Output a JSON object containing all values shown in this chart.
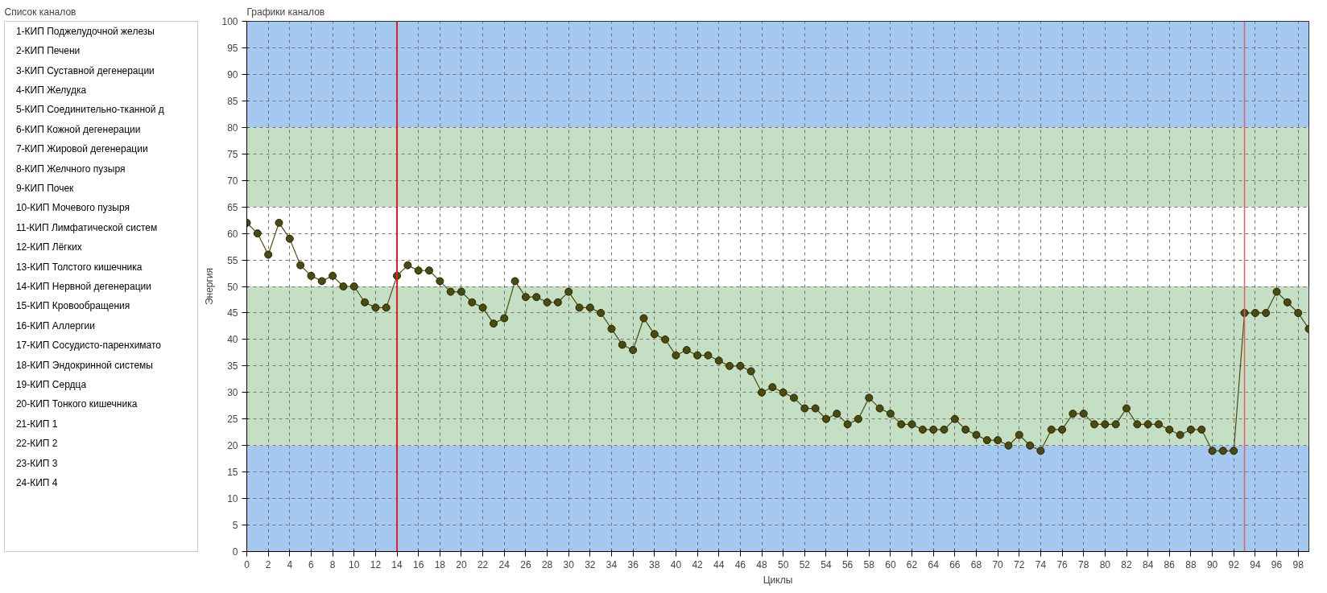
{
  "chart_data": [
    {
      "type": "other",
      "title": "Список каналов",
      "annotations": [
        "1-КИП Поджелудочной железы",
        "2-КИП Печени",
        "3-КИП Суставной дегенерации",
        "4-КИП Желудка",
        "5-КИП Соединительно-тканной д",
        "6-КИП Кожной дегенерации",
        "7-КИП Жировой дегенерации",
        "8-КИП Желчного пузыря",
        "9-КИП Почек",
        "10-КИП Мочевого пузыря",
        "11-КИП Лимфатической систем",
        "12-КИП Лёгких",
        "13-КИП Толстого кишечника",
        "14-КИП Нервной дегенерации",
        "15-КИП Кровообращения",
        "16-КИП Аллергии",
        "17-КИП Сосудисто-паренхимато",
        "18-КИП Эндокринной системы",
        "19-КИП Сердца",
        "20-КИП Тонкого кишечника",
        "21-КИП 1",
        "22-КИП 2",
        "23-КИП 3",
        "24-КИП 4"
      ]
    },
    {
      "type": "line",
      "title": "Графики каналов",
      "xlabel": "Циклы",
      "ylabel": "Энергия",
      "x": [
        0,
        1,
        2,
        3,
        4,
        5,
        6,
        7,
        8,
        9,
        10,
        11,
        12,
        13,
        14,
        15,
        16,
        17,
        18,
        19,
        20,
        21,
        22,
        23,
        24,
        25,
        26,
        27,
        28,
        29,
        30,
        31,
        32,
        33,
        34,
        35,
        36,
        37,
        38,
        39,
        40,
        41,
        42,
        43,
        44,
        45,
        46,
        47,
        48,
        49,
        50,
        51,
        52,
        53,
        54,
        55,
        56,
        57,
        58,
        59,
        60,
        61,
        62,
        63,
        64,
        65,
        66,
        67,
        68,
        69,
        70,
        71,
        72,
        73,
        74,
        75,
        76,
        77,
        78,
        79,
        80,
        81,
        82,
        83,
        84,
        85,
        86,
        87,
        88,
        89,
        90,
        91,
        92,
        93,
        94,
        95,
        96,
        97,
        98,
        99
      ],
      "series": [
        {
          "color": "#4b4b10",
          "values": [
            62,
            60,
            56,
            62,
            59,
            54,
            52,
            51,
            52,
            50,
            50,
            47,
            46,
            46,
            52,
            54,
            53,
            53,
            51,
            49,
            49,
            47,
            46,
            43,
            44,
            51,
            48,
            48,
            47,
            47,
            49,
            46,
            46,
            45,
            42,
            39,
            38,
            44,
            41,
            40,
            37,
            38,
            37,
            37,
            36,
            35,
            35,
            34,
            30,
            31,
            30,
            29,
            27,
            27,
            25,
            26,
            24,
            25,
            29,
            27,
            26,
            24,
            24,
            23,
            23,
            23,
            25,
            23,
            22,
            21,
            21,
            20,
            22,
            20,
            19,
            23,
            23,
            26,
            26,
            24,
            24,
            24,
            27,
            24,
            24,
            24,
            23,
            22,
            23,
            23,
            19,
            19,
            19,
            45,
            45,
            45,
            49,
            47,
            45,
            42
          ]
        }
      ],
      "xlim": [
        0,
        99
      ],
      "xticks": [
        0,
        2,
        4,
        6,
        8,
        10,
        12,
        14,
        16,
        18,
        20,
        22,
        24,
        26,
        28,
        30,
        32,
        34,
        36,
        38,
        40,
        42,
        44,
        46,
        48,
        50,
        52,
        54,
        56,
        58,
        60,
        62,
        64,
        66,
        68,
        70,
        72,
        74,
        76,
        78,
        80,
        82,
        84,
        86,
        88,
        90,
        92,
        94,
        96,
        98
      ],
      "ylim": [
        0,
        100
      ],
      "yticks": [
        0,
        5,
        10,
        15,
        20,
        25,
        30,
        35,
        40,
        45,
        50,
        55,
        60,
        65,
        70,
        75,
        80,
        85,
        90,
        95,
        100
      ],
      "grid": true,
      "marker": "circle",
      "line_style": "solid",
      "bands": [
        {
          "axis": "y",
          "from": 0,
          "to": 20,
          "color": "#a4c8f0"
        },
        {
          "axis": "y",
          "from": 20,
          "to": 50,
          "color": "#c4dfc4"
        },
        {
          "axis": "y",
          "from": 65,
          "to": 80,
          "color": "#c4dfc4"
        },
        {
          "axis": "y",
          "from": 80,
          "to": 100,
          "color": "#a4c8f0"
        }
      ],
      "ref_lines": [
        {
          "axis": "x",
          "value": 14,
          "color": "#e02020"
        },
        {
          "axis": "x",
          "value": 93,
          "color": "#e06060"
        }
      ]
    }
  ]
}
